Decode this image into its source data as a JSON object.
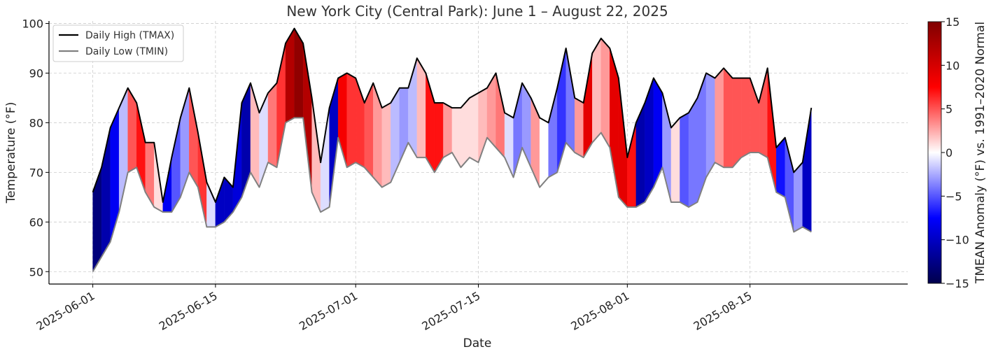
{
  "chart_data": {
    "type": "area",
    "title": "New York City (Central Park): June 1 – August 22, 2025",
    "xlabel": "Date",
    "ylabel": "Temperature (°F)",
    "ylim": [
      47.5,
      100.5
    ],
    "x_start": "2025-06-01",
    "x_end": "2025-08-22",
    "xlim": [
      "2025-05-27",
      "2025-09-02"
    ],
    "x_ticks": [
      "2025-06-01",
      "2025-06-15",
      "2025-07-01",
      "2025-07-15",
      "2025-08-01",
      "2025-08-15"
    ],
    "y_ticks": [
      50,
      60,
      70,
      80,
      90,
      100
    ],
    "grid": true,
    "legend_position": "top-left",
    "series": [
      {
        "name": "Daily High (TMAX)",
        "color": "#000000",
        "values": [
          66,
          71,
          79,
          83,
          87,
          84,
          76,
          76,
          64,
          73,
          81,
          87,
          78,
          68,
          64,
          69,
          67,
          84,
          88,
          82,
          86,
          88,
          96,
          99,
          96,
          85,
          72,
          83,
          89,
          90,
          89,
          84,
          88,
          83,
          84,
          87,
          87,
          93,
          90,
          84,
          84,
          83,
          83,
          85,
          86,
          87,
          90,
          82,
          81,
          88,
          85,
          81,
          80,
          87,
          95,
          85,
          84,
          94,
          97,
          95,
          89,
          73,
          80,
          84,
          89,
          86,
          79,
          81,
          82,
          85,
          90,
          89,
          91,
          89,
          89,
          89,
          84,
          91,
          75,
          77,
          70,
          72,
          83
        ]
      },
      {
        "name": "Daily Low (TMIN)",
        "color": "#808080",
        "values": [
          50,
          53,
          56,
          62,
          70,
          71,
          66,
          63,
          62,
          62,
          65,
          70,
          67,
          59,
          59,
          60,
          62,
          65,
          70,
          67,
          72,
          71,
          80,
          81,
          81,
          66,
          62,
          63,
          77,
          71,
          72,
          71,
          69,
          67,
          68,
          72,
          76,
          73,
          73,
          70,
          73,
          74,
          71,
          73,
          72,
          77,
          75,
          73,
          69,
          75,
          71,
          67,
          69,
          70,
          76,
          74,
          73,
          76,
          78,
          75,
          65,
          63,
          63,
          64,
          67,
          71,
          64,
          64,
          63,
          64,
          69,
          72,
          71,
          71,
          73,
          74,
          74,
          73,
          66,
          65,
          58,
          59,
          58
        ]
      }
    ],
    "anomaly": {
      "name": "TMEAN Anomaly (°F) vs. 1991–2020 Normal",
      "colormap": "seismic",
      "range": [
        -15,
        15
      ],
      "ticks": [
        -15,
        -10,
        -5,
        0,
        5,
        10,
        15
      ],
      "values": [
        -13,
        -11,
        -8,
        -2,
        5,
        7,
        4,
        1,
        -8,
        -5,
        -3,
        5,
        6,
        -1,
        -10,
        -10,
        -9,
        -11,
        2,
        -1,
        4,
        6,
        12,
        14,
        12,
        2,
        -1,
        -10,
        8,
        6,
        6,
        5,
        3,
        2,
        -2,
        -3,
        -2,
        2,
        7,
        7,
        3,
        1,
        1,
        1,
        2,
        3,
        4,
        -1,
        -4,
        -3,
        3,
        0,
        -4,
        -6,
        -4,
        3,
        9,
        2,
        3,
        9,
        9,
        7,
        -11,
        -10,
        -8,
        -3,
        1,
        -5,
        -4,
        -4,
        -3,
        3,
        5,
        5,
        5,
        5,
        5,
        7,
        -7,
        -5,
        -3,
        -10,
        -12
      ]
    }
  }
}
